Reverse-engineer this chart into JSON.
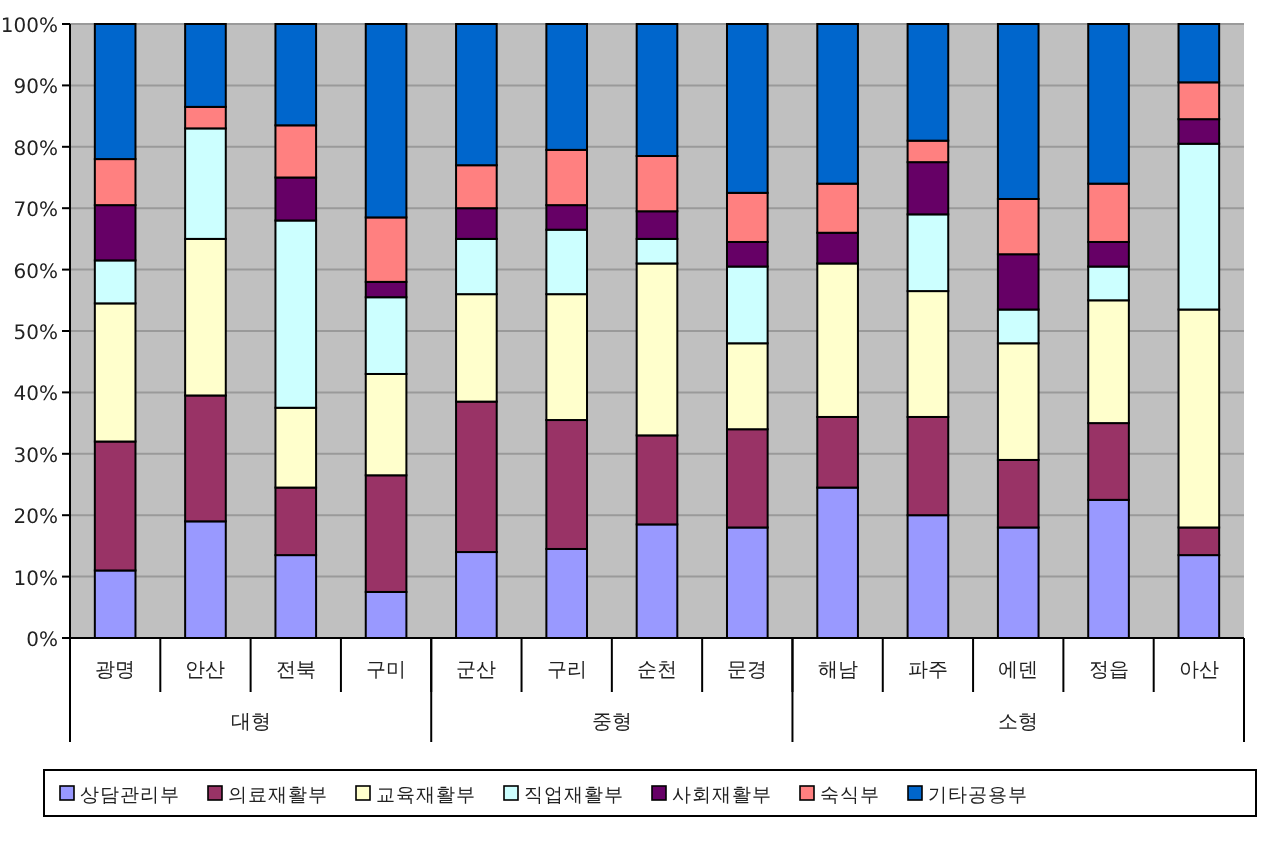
{
  "chart_data": {
    "type": "bar",
    "stacked": true,
    "categories": [
      "광명",
      "안산",
      "전북",
      "구미",
      "군산",
      "구리",
      "순천",
      "문경",
      "해남",
      "파주",
      "에덴",
      "정읍",
      "아산"
    ],
    "series": [
      {
        "name": "상담관리부",
        "color": "#9999ff",
        "values": [
          11,
          19,
          13.5,
          7.5,
          14,
          14.5,
          18.5,
          18,
          24.5,
          20,
          18,
          22.5,
          13.5
        ]
      },
      {
        "name": "의료재활부",
        "color": "#993366",
        "values": [
          21,
          20.5,
          11,
          19,
          24.5,
          21,
          14.5,
          16,
          11.5,
          16,
          11,
          12.5,
          4.5
        ]
      },
      {
        "name": "교육재활부",
        "color": "#ffffcc",
        "values": [
          22.5,
          25.5,
          13,
          16.5,
          17.5,
          20.5,
          28,
          14,
          25,
          20.5,
          19,
          20,
          35.5
        ]
      },
      {
        "name": "직업재활부",
        "color": "#ccffff",
        "values": [
          7,
          18,
          30.5,
          12.5,
          9,
          10.5,
          4,
          12.5,
          0,
          12.5,
          5.5,
          5.5,
          27
        ]
      },
      {
        "name": "사회재활부",
        "color": "#660066",
        "values": [
          9,
          0,
          7,
          2.5,
          5,
          4,
          4.5,
          4,
          5,
          8.5,
          9,
          4,
          4
        ]
      },
      {
        "name": "숙식부",
        "color": "#ff8080",
        "values": [
          7.5,
          3.5,
          8.5,
          10.5,
          7,
          9,
          9,
          8,
          8,
          3.5,
          9,
          9.5,
          6
        ]
      },
      {
        "name": "기타공용부",
        "color": "#0066cc",
        "values": [
          22,
          13.5,
          16.5,
          31.5,
          23,
          20.5,
          21.5,
          27.5,
          26,
          19,
          28.5,
          26,
          9.5
        ]
      }
    ],
    "ylim": [
      0,
      100
    ],
    "yticks": [
      {
        "value": 0,
        "label": "0%"
      },
      {
        "value": 10,
        "label": "10%"
      },
      {
        "value": 20,
        "label": "20%"
      },
      {
        "value": 30,
        "label": "30%"
      },
      {
        "value": 40,
        "label": "40%"
      },
      {
        "value": 50,
        "label": "50%"
      },
      {
        "value": 60,
        "label": "60%"
      },
      {
        "value": 70,
        "label": "70%"
      },
      {
        "value": 80,
        "label": "80%"
      },
      {
        "value": 90,
        "label": "90%"
      },
      {
        "value": 100,
        "label": "100%"
      }
    ],
    "grid": "y",
    "legend": "bottom",
    "annotations": [
      "대형",
      "중형",
      "소형"
    ]
  }
}
